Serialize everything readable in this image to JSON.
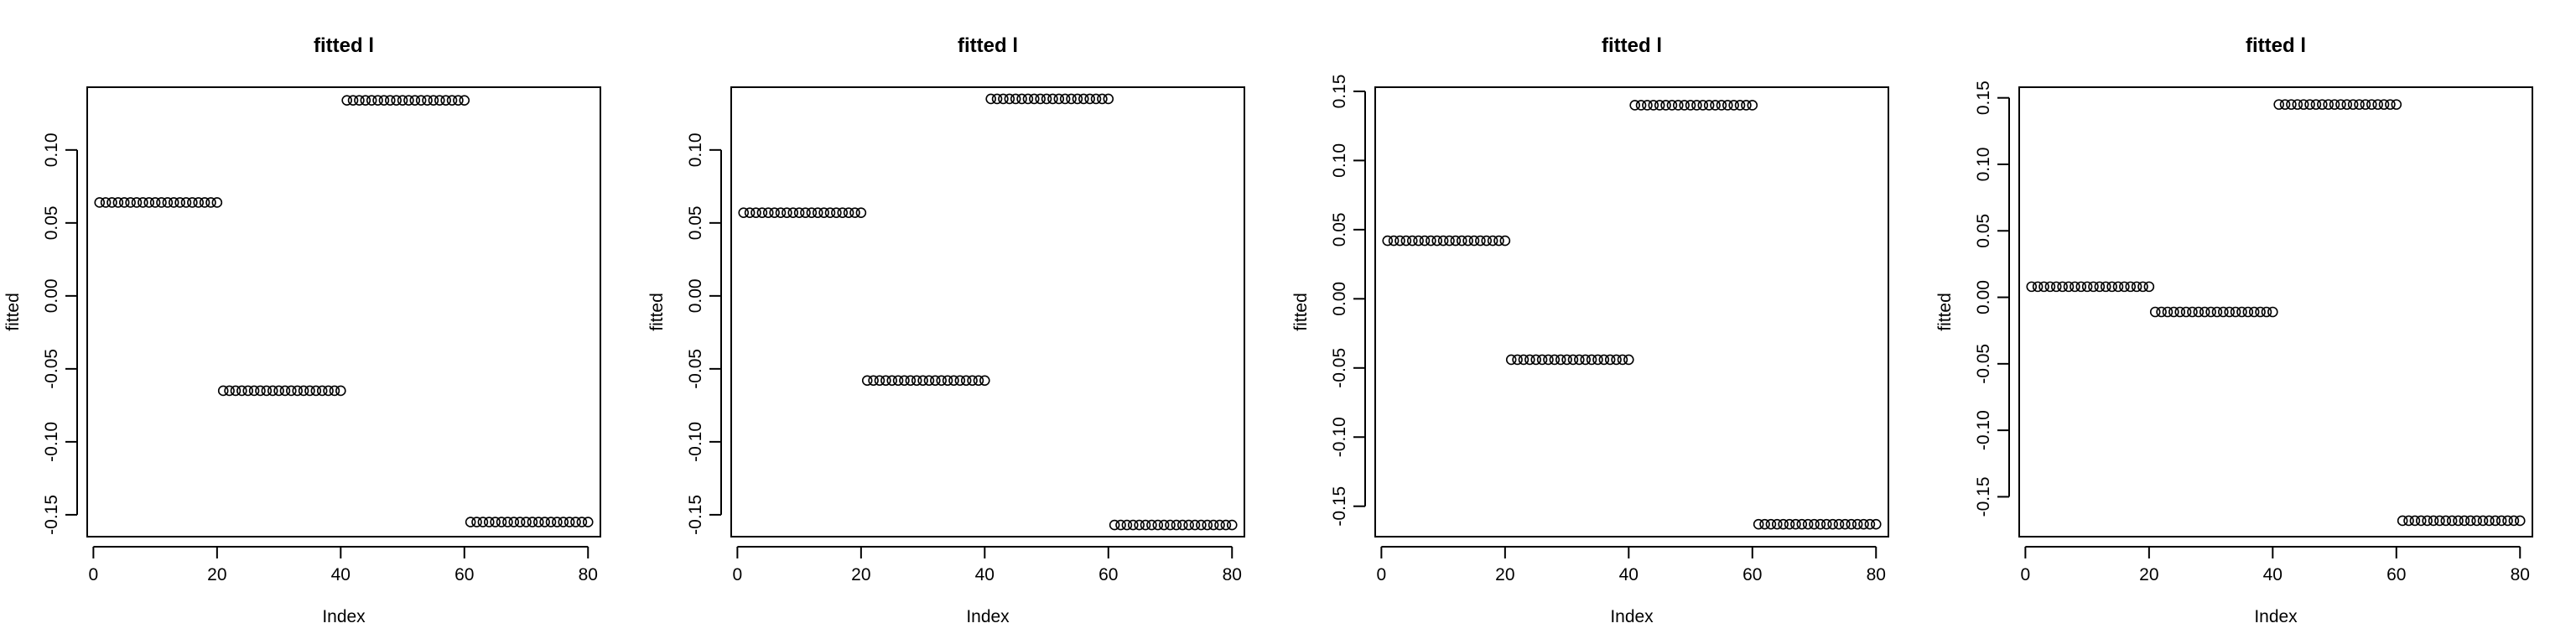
{
  "chart_data": [
    {
      "type": "scatter",
      "title": "fitted l",
      "xlabel": "Index",
      "ylabel": "fitted",
      "xlim": [
        -1,
        82
      ],
      "ylim": [
        -0.165,
        0.143
      ],
      "xticks": [
        0,
        20,
        40,
        60,
        80
      ],
      "yticks": [
        -0.15,
        -0.1,
        -0.05,
        0.0,
        0.05,
        0.1
      ],
      "ytick_labels": [
        "-0.15",
        "-0.10",
        "-0.05",
        "0.00",
        "0.05",
        "0.10"
      ],
      "xtick_labels": [
        "0",
        "20",
        "40",
        "60",
        "80"
      ],
      "grid": false,
      "marker": "open-circle",
      "x": [
        1,
        80
      ],
      "groups": [
        {
          "x_from": 1,
          "x_to": 20,
          "y": 0.064
        },
        {
          "x_from": 21,
          "x_to": 40,
          "y": -0.065
        },
        {
          "x_from": 41,
          "x_to": 60,
          "y": 0.134
        },
        {
          "x_from": 61,
          "x_to": 80,
          "y": -0.155
        }
      ]
    },
    {
      "type": "scatter",
      "title": "fitted l",
      "xlabel": "Index",
      "ylabel": "fitted",
      "xlim": [
        -1,
        82
      ],
      "ylim": [
        -0.165,
        0.143
      ],
      "xticks": [
        0,
        20,
        40,
        60,
        80
      ],
      "yticks": [
        -0.15,
        -0.1,
        -0.05,
        0.0,
        0.05,
        0.1
      ],
      "ytick_labels": [
        "-0.15",
        "-0.10",
        "-0.05",
        "0.00",
        "0.05",
        "0.10"
      ],
      "xtick_labels": [
        "0",
        "20",
        "40",
        "60",
        "80"
      ],
      "grid": false,
      "marker": "open-circle",
      "groups": [
        {
          "x_from": 1,
          "x_to": 20,
          "y": 0.057
        },
        {
          "x_from": 21,
          "x_to": 40,
          "y": -0.058
        },
        {
          "x_from": 41,
          "x_to": 60,
          "y": 0.135
        },
        {
          "x_from": 61,
          "x_to": 80,
          "y": -0.157
        }
      ]
    },
    {
      "type": "scatter",
      "title": "fitted l",
      "xlabel": "Index",
      "ylabel": "fitted",
      "xlim": [
        -1,
        82
      ],
      "ylim": [
        -0.172,
        0.153
      ],
      "xticks": [
        0,
        20,
        40,
        60,
        80
      ],
      "yticks": [
        -0.15,
        -0.1,
        -0.05,
        0.0,
        0.05,
        0.1,
        0.15
      ],
      "ytick_labels": [
        "-0.15",
        "-0.10",
        "-0.05",
        "0.00",
        "0.05",
        "0.10",
        "0.15"
      ],
      "xtick_labels": [
        "0",
        "20",
        "40",
        "60",
        "80"
      ],
      "grid": false,
      "marker": "open-circle",
      "groups": [
        {
          "x_from": 1,
          "x_to": 20,
          "y": 0.042
        },
        {
          "x_from": 21,
          "x_to": 40,
          "y": -0.044
        },
        {
          "x_from": 41,
          "x_to": 60,
          "y": 0.14
        },
        {
          "x_from": 61,
          "x_to": 80,
          "y": -0.163
        }
      ]
    },
    {
      "type": "scatter",
      "title": "fitted l",
      "xlabel": "Index",
      "ylabel": "fitted",
      "xlim": [
        -1,
        82
      ],
      "ylim": [
        -0.18,
        0.158
      ],
      "xticks": [
        0,
        20,
        40,
        60,
        80
      ],
      "yticks": [
        -0.15,
        -0.1,
        -0.05,
        0.0,
        0.05,
        0.1,
        0.15
      ],
      "ytick_labels": [
        "-0.15",
        "-0.10",
        "-0.05",
        "0.00",
        "0.05",
        "0.10",
        "0.15"
      ],
      "xtick_labels": [
        "0",
        "20",
        "40",
        "60",
        "80"
      ],
      "grid": false,
      "marker": "open-circle",
      "groups": [
        {
          "x_from": 1,
          "x_to": 20,
          "y": 0.008
        },
        {
          "x_from": 21,
          "x_to": 40,
          "y": -0.011
        },
        {
          "x_from": 41,
          "x_to": 60,
          "y": 0.145
        },
        {
          "x_from": 61,
          "x_to": 80,
          "y": -0.168
        }
      ]
    }
  ]
}
